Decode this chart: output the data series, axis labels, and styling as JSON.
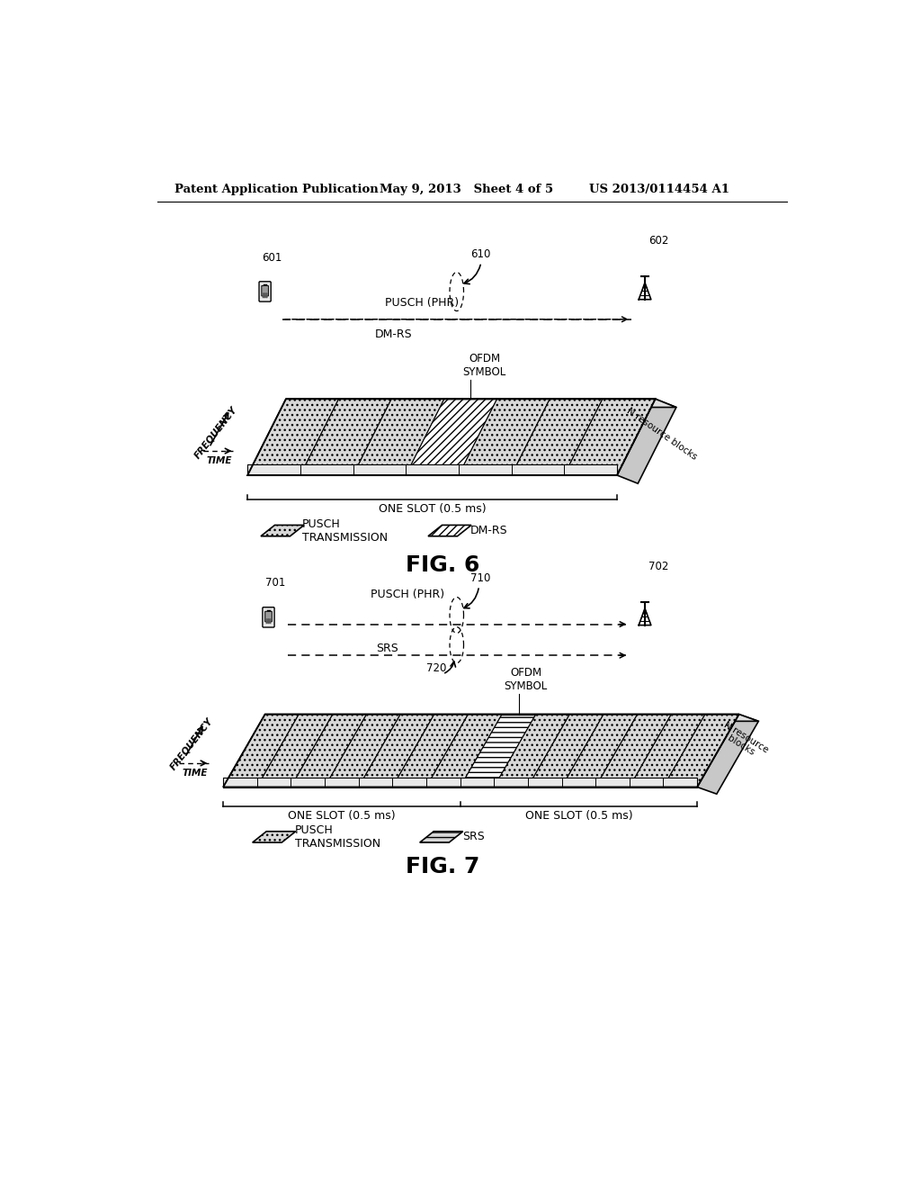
{
  "header_left": "Patent Application Publication",
  "header_mid": "May 9, 2013   Sheet 4 of 5",
  "header_right": "US 2013/0114454 A1",
  "fig6_label": "FIG. 6",
  "fig7_label": "FIG. 7",
  "bg_color": "#ffffff",
  "fig6": {
    "ue_label": "601",
    "bs_label": "602",
    "oval_label": "610",
    "pusch_label": "PUSCH (PHR)",
    "dmrs_label": "DM-RS",
    "slot_label": "ONE SLOT (0.5 ms)",
    "ofdm_label": "OFDM\nSYMBOL",
    "legend1_label": "PUSCH\nTRANSMISSION",
    "legend2_label": "DM-RS",
    "n_blocks_label": "N resource blocks"
  },
  "fig7": {
    "ue_label": "701",
    "bs_label": "702",
    "oval_label": "710",
    "oval2_label": "720",
    "pusch_label": "PUSCH (PHR)",
    "srs_label": "SRS",
    "slot1_label": "ONE SLOT (0.5 ms)",
    "slot2_label": "ONE SLOT (0.5 ms)",
    "ofdm_label": "OFDM\nSYMBOL",
    "legend1_label": "PUSCH\nTRANSMISSION",
    "legend2_label": "SRS",
    "n_blocks_label": "N resource\nblocks"
  }
}
